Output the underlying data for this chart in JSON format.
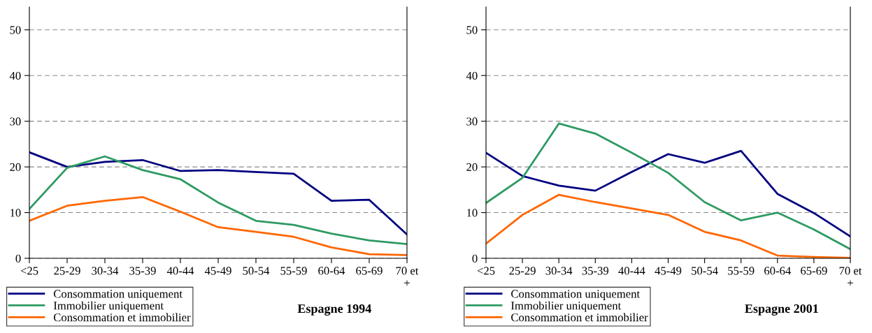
{
  "chart_data": [
    {
      "type": "line",
      "title": "Espagne 1994",
      "categories": [
        "<25",
        "25-29",
        "30-34",
        "35-39",
        "40-44",
        "45-49",
        "50-54",
        "55-59",
        "60-64",
        "65-69",
        "70 et\n+"
      ],
      "ylim": [
        0,
        55
      ],
      "yticks": [
        0,
        10,
        20,
        30,
        40,
        50
      ],
      "grid": "y",
      "legend": "bottom",
      "series": [
        {
          "name": "Consommation uniquement",
          "color": "#000080",
          "values": [
            23.2,
            20.0,
            21.1,
            21.5,
            19.1,
            19.3,
            18.9,
            18.5,
            12.6,
            12.8,
            5.2
          ]
        },
        {
          "name": "Immobilier uniquement",
          "color": "#2e9a62",
          "values": [
            10.8,
            19.8,
            22.3,
            19.3,
            17.3,
            12.2,
            8.2,
            7.3,
            5.4,
            3.9,
            3.1
          ]
        },
        {
          "name": "Consommation et immobilier",
          "color": "#ff6600",
          "values": [
            8.2,
            11.5,
            12.6,
            13.4,
            10.2,
            6.8,
            5.8,
            4.7,
            2.4,
            0.9,
            0.7
          ]
        }
      ]
    },
    {
      "type": "line",
      "title": "Espagne 2001",
      "categories": [
        "<25",
        "25-29",
        "30-34",
        "35-39",
        "40-44",
        "45-49",
        "50-54",
        "55-59",
        "60-64",
        "65-69",
        "70 et\n+"
      ],
      "ylim": [
        0,
        55
      ],
      "yticks": [
        0,
        10,
        20,
        30,
        40,
        50
      ],
      "grid": "y",
      "legend": "bottom",
      "series": [
        {
          "name": "Consommation uniquement",
          "color": "#000080",
          "values": [
            23.1,
            18.0,
            15.9,
            14.8,
            18.9,
            22.8,
            20.9,
            23.5,
            14.1,
            9.9,
            4.8
          ]
        },
        {
          "name": "Immobilier uniquement",
          "color": "#2e9a62",
          "values": [
            12.1,
            17.6,
            29.5,
            27.3,
            23.1,
            18.7,
            12.3,
            8.3,
            10.0,
            6.3,
            2.0
          ]
        },
        {
          "name": "Consommation et immobilier",
          "color": "#ff6600",
          "values": [
            3.2,
            9.5,
            13.9,
            12.3,
            10.9,
            9.5,
            5.8,
            3.9,
            0.6,
            0.3,
            0.1
          ]
        }
      ]
    }
  ]
}
